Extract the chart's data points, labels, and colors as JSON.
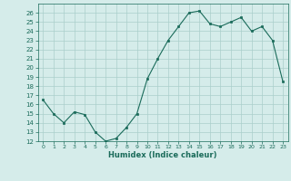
{
  "x": [
    0,
    1,
    2,
    3,
    4,
    5,
    6,
    7,
    8,
    9,
    10,
    11,
    12,
    13,
    14,
    15,
    16,
    17,
    18,
    19,
    20,
    21,
    22,
    23
  ],
  "y": [
    16.5,
    15.0,
    14.0,
    15.2,
    14.9,
    13.0,
    12.0,
    12.3,
    13.5,
    15.0,
    18.8,
    21.0,
    23.0,
    24.5,
    26.0,
    26.2,
    24.8,
    24.5,
    25.0,
    25.5,
    24.0,
    24.5,
    23.0,
    18.5
  ],
  "xlabel": "Humidex (Indice chaleur)",
  "ylim": [
    12,
    27
  ],
  "xlim": [
    -0.5,
    23.5
  ],
  "yticks": [
    12,
    13,
    14,
    15,
    16,
    17,
    18,
    19,
    20,
    21,
    22,
    23,
    24,
    25,
    26
  ],
  "xticks": [
    0,
    1,
    2,
    3,
    4,
    5,
    6,
    7,
    8,
    9,
    10,
    11,
    12,
    13,
    14,
    15,
    16,
    17,
    18,
    19,
    20,
    21,
    22,
    23
  ],
  "line_color": "#1a6b5a",
  "marker_color": "#1a6b5a",
  "bg_color": "#d5ecea",
  "grid_color": "#aacfcb",
  "label_color": "#1a6b5a",
  "tick_color": "#1a6b5a"
}
